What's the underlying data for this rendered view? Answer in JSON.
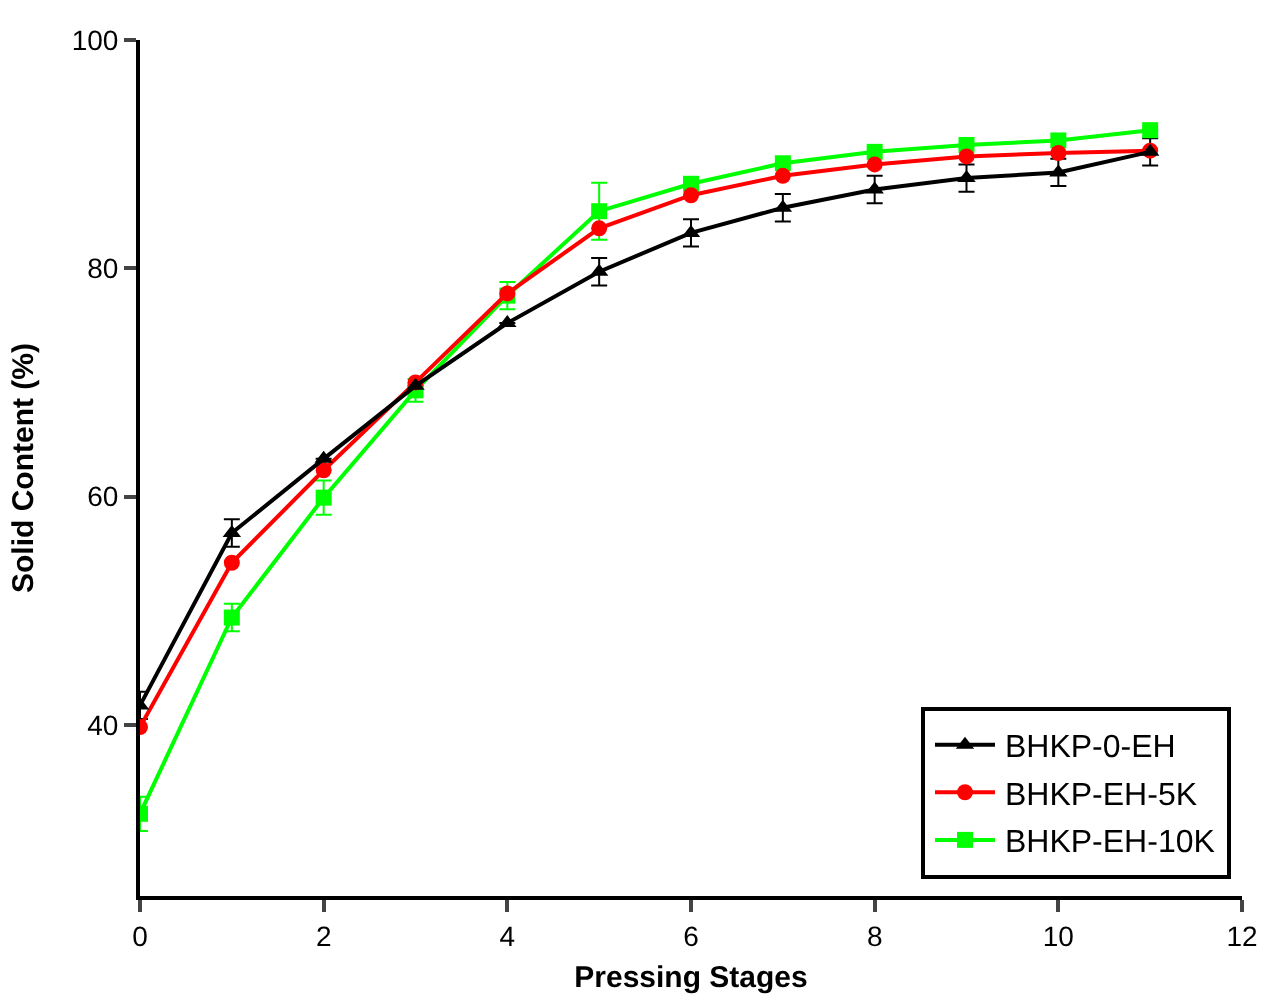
{
  "chart_data": {
    "type": "line",
    "xlabel": "Pressing Stages",
    "ylabel": "Solid Content (%)",
    "x": [
      0,
      1,
      2,
      3,
      4,
      5,
      6,
      7,
      8,
      9,
      10,
      11
    ],
    "xlim": [
      0,
      12
    ],
    "xticks": [
      0,
      2,
      4,
      6,
      8,
      10,
      12
    ],
    "ylim": [
      25,
      100
    ],
    "yticks": [
      40,
      60,
      80,
      100
    ],
    "legend": "bottom right",
    "series": [
      {
        "name": "BHKP-0-EH",
        "color": "#000000",
        "marker": "triangle",
        "values": [
          41.7,
          56.8,
          63.3,
          69.7,
          75.2,
          79.7,
          83.1,
          85.3,
          86.9,
          87.9,
          88.4,
          90.2
        ],
        "errors": [
          1.2,
          1.2,
          null,
          null,
          null,
          1.2,
          1.2,
          1.2,
          1.2,
          1.2,
          1.2,
          1.2
        ]
      },
      {
        "name": "BHKP-EH-5K",
        "color": "#ff0000",
        "marker": "circle",
        "values": [
          39.8,
          54.2,
          62.3,
          70.0,
          77.8,
          83.5,
          86.4,
          88.1,
          89.1,
          89.8,
          90.1,
          90.3
        ],
        "errors": [
          null,
          null,
          null,
          null,
          null,
          null,
          null,
          null,
          null,
          null,
          null,
          null
        ]
      },
      {
        "name": "BHKP-EH-10K",
        "color": "#00ff00",
        "marker": "square",
        "values": [
          32.2,
          49.4,
          59.9,
          69.3,
          77.6,
          85.0,
          87.4,
          89.2,
          90.2,
          90.8,
          91.2,
          92.1
        ],
        "errors": [
          1.5,
          1.2,
          1.5,
          1,
          1.2,
          2.5,
          null,
          null,
          null,
          null,
          null,
          null
        ]
      }
    ]
  }
}
